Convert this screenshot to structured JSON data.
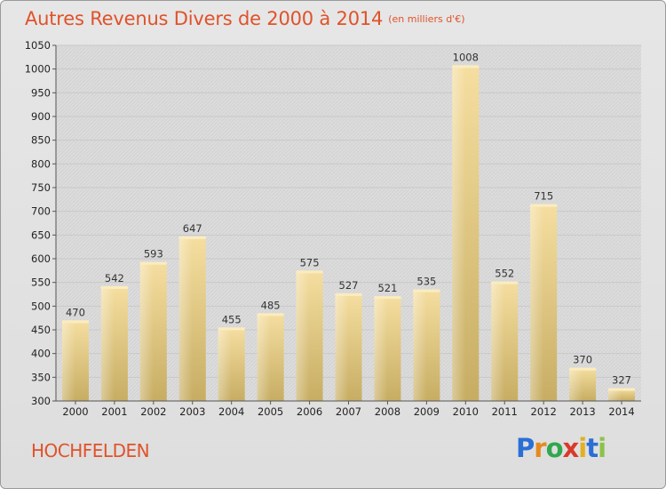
{
  "header": {
    "title": "Autres Revenus Divers de 2000 à 2014",
    "unit": "(en milliers d'€)"
  },
  "footer": {
    "commune": "HOCHFELDEN",
    "logo": "Proxiti"
  },
  "colors": {
    "title": "#e0522a",
    "bar_light": "#f5dea0",
    "bar_dark": "#c7ad63",
    "background": "#e2e2e2"
  },
  "chart_data": {
    "type": "bar",
    "title": "Autres Revenus Divers de 2000 à 2014",
    "subtitle": "(en milliers d'€)",
    "categories": [
      "2000",
      "2001",
      "2002",
      "2003",
      "2004",
      "2005",
      "2006",
      "2007",
      "2008",
      "2009",
      "2010",
      "2011",
      "2012",
      "2013",
      "2014"
    ],
    "values": [
      470,
      542,
      593,
      647,
      455,
      485,
      575,
      527,
      521,
      535,
      1008,
      552,
      715,
      370,
      327
    ],
    "ylim": [
      300,
      1050
    ],
    "yticks": [
      300,
      350,
      400,
      450,
      500,
      550,
      600,
      650,
      700,
      750,
      800,
      850,
      900,
      950,
      1000,
      1050
    ],
    "grid": true,
    "legend": "none"
  }
}
